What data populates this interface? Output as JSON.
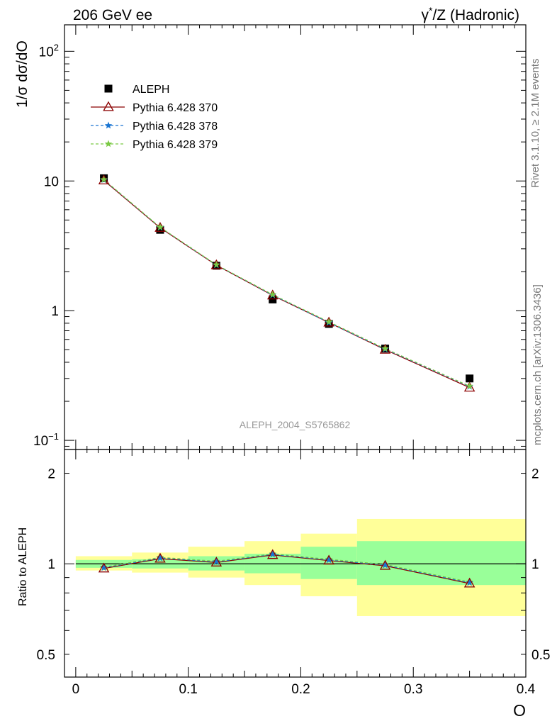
{
  "header": {
    "left": "206 GeV ee",
    "right_prefix": "γ",
    "right_sup": "*",
    "right_suffix": "/Z (Hadronic)"
  },
  "side": {
    "rivet": "Rivet 3.1.10, ≥ 2.1M events",
    "mcplots": "mcplots.cern.ch [arXiv:1306.3436]"
  },
  "watermark": "ALEPH_2004_S5765862",
  "chart_data": [
    {
      "type": "line",
      "panel": "main",
      "ylabel": "1/σ  dσ/dO",
      "yscale": "log",
      "ylim": [
        0.085,
        160
      ],
      "xlim": [
        -0.01,
        0.4
      ],
      "grid": false,
      "legend_position": "top-left",
      "y_ticks": [
        {
          "value": 100,
          "base": "10",
          "exp": "2"
        },
        {
          "value": 10,
          "label": "10"
        },
        {
          "value": 1,
          "label": "1"
        },
        {
          "value": 0.1,
          "base": "10",
          "exp": "−1"
        }
      ],
      "x": [
        0.025,
        0.075,
        0.125,
        0.175,
        0.225,
        0.275,
        0.35
      ],
      "series": [
        {
          "name": "ALEPH",
          "role": "data",
          "marker": "square",
          "color": "#000000",
          "values": [
            10.5,
            4.2,
            2.22,
            1.22,
            0.79,
            0.51,
            0.3
          ]
        },
        {
          "name": "Pythia 6.428 370",
          "role": "mc",
          "marker": "open-triangle",
          "line": "solid",
          "color": "#8b0000",
          "values": [
            10.1,
            4.35,
            2.24,
            1.31,
            0.81,
            0.5,
            0.255
          ]
        },
        {
          "name": "Pythia 6.428 378",
          "role": "mc",
          "marker": "star",
          "line": "dashed",
          "color": "#1a75d2",
          "values": [
            10.2,
            4.38,
            2.25,
            1.32,
            0.81,
            0.505,
            0.26
          ]
        },
        {
          "name": "Pythia 6.428 379",
          "role": "mc",
          "marker": "star",
          "line": "dashed",
          "color": "#7ac943",
          "values": [
            10.25,
            4.4,
            2.26,
            1.33,
            0.82,
            0.51,
            0.262
          ]
        }
      ]
    },
    {
      "type": "line",
      "panel": "ratio",
      "ylabel": "Ratio to ALEPH",
      "xlabel": "O",
      "yscale": "log",
      "ylim": [
        0.42,
        2.4
      ],
      "xlim": [
        -0.01,
        0.4
      ],
      "y_ticks": [
        0.5,
        1,
        2
      ],
      "x_ticks": [
        0,
        0.1,
        0.2,
        0.3,
        0.4
      ],
      "x_tick_labels": [
        "0",
        "0.1",
        "0.2",
        "0.3",
        "0.4"
      ],
      "bands": [
        {
          "x_low": 0.0,
          "x_high": 0.05,
          "stat_low": 0.97,
          "stat_high": 1.03,
          "tot_low": 0.95,
          "tot_high": 1.06
        },
        {
          "x_low": 0.05,
          "x_high": 0.1,
          "stat_low": 0.965,
          "stat_high": 1.035,
          "tot_low": 0.935,
          "tot_high": 1.09
        },
        {
          "x_low": 0.1,
          "x_high": 0.15,
          "stat_low": 0.95,
          "stat_high": 1.06,
          "tot_low": 0.9,
          "tot_high": 1.14
        },
        {
          "x_low": 0.15,
          "x_high": 0.2,
          "stat_low": 0.93,
          "stat_high": 1.08,
          "tot_low": 0.85,
          "tot_high": 1.19
        },
        {
          "x_low": 0.2,
          "x_high": 0.25,
          "stat_low": 0.89,
          "stat_high": 1.14,
          "tot_low": 0.78,
          "tot_high": 1.26
        },
        {
          "x_low": 0.25,
          "x_high": 0.4,
          "stat_low": 0.85,
          "stat_high": 1.19,
          "tot_low": 0.67,
          "tot_high": 1.41
        }
      ],
      "x": [
        0.025,
        0.075,
        0.125,
        0.175,
        0.225,
        0.275,
        0.35
      ],
      "series": [
        {
          "name": "Pythia 6.428 370",
          "color": "#8b0000",
          "marker": "open-triangle",
          "line": "solid",
          "values": [
            0.965,
            1.04,
            1.01,
            1.07,
            1.025,
            0.985,
            0.86
          ]
        },
        {
          "name": "Pythia 6.428 378",
          "color": "#1a75d2",
          "marker": "star",
          "line": "dashed",
          "values": [
            0.97,
            1.045,
            1.015,
            1.075,
            1.03,
            0.99,
            0.865
          ]
        },
        {
          "name": "Pythia 6.428 379",
          "color": "#7ac943",
          "marker": "star",
          "line": "dashed",
          "values": [
            0.975,
            1.05,
            1.02,
            1.08,
            1.035,
            0.995,
            0.87
          ]
        }
      ]
    }
  ],
  "colors": {
    "stat_band": "#99ff99",
    "total_band": "#ffff99",
    "side_text": "#777777",
    "watermark": "#999999"
  }
}
